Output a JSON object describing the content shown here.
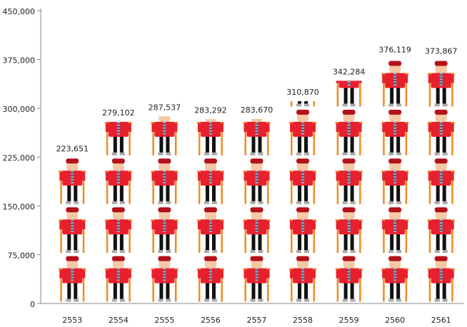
{
  "chart_data": {
    "type": "pictograph",
    "categories": [
      "2553",
      "2554",
      "2555",
      "2556",
      "2557",
      "2558",
      "2559",
      "2560",
      "2561"
    ],
    "values": [
      223651,
      279102,
      287537,
      283292,
      283670,
      310870,
      342284,
      376119,
      373867
    ],
    "value_labels": [
      "223,651",
      "279,102",
      "287,537",
      "283,292",
      "283,670",
      "310,870",
      "342,284",
      "376,119",
      "373,867"
    ],
    "ylim": [
      0,
      450000
    ],
    "yticks": [
      0,
      {
        "value": 75000,
        "label": "75,000"
      },
      {
        "value": 150000,
        "label": "150,000"
      },
      {
        "value": 225000,
        "label": "225,000"
      },
      {
        "value": 300000,
        "label": "300,000"
      },
      {
        "value": 375000,
        "label": "375,000"
      },
      {
        "value": 450000,
        "label": "450,000"
      }
    ],
    "color": "#e8202e"
  }
}
